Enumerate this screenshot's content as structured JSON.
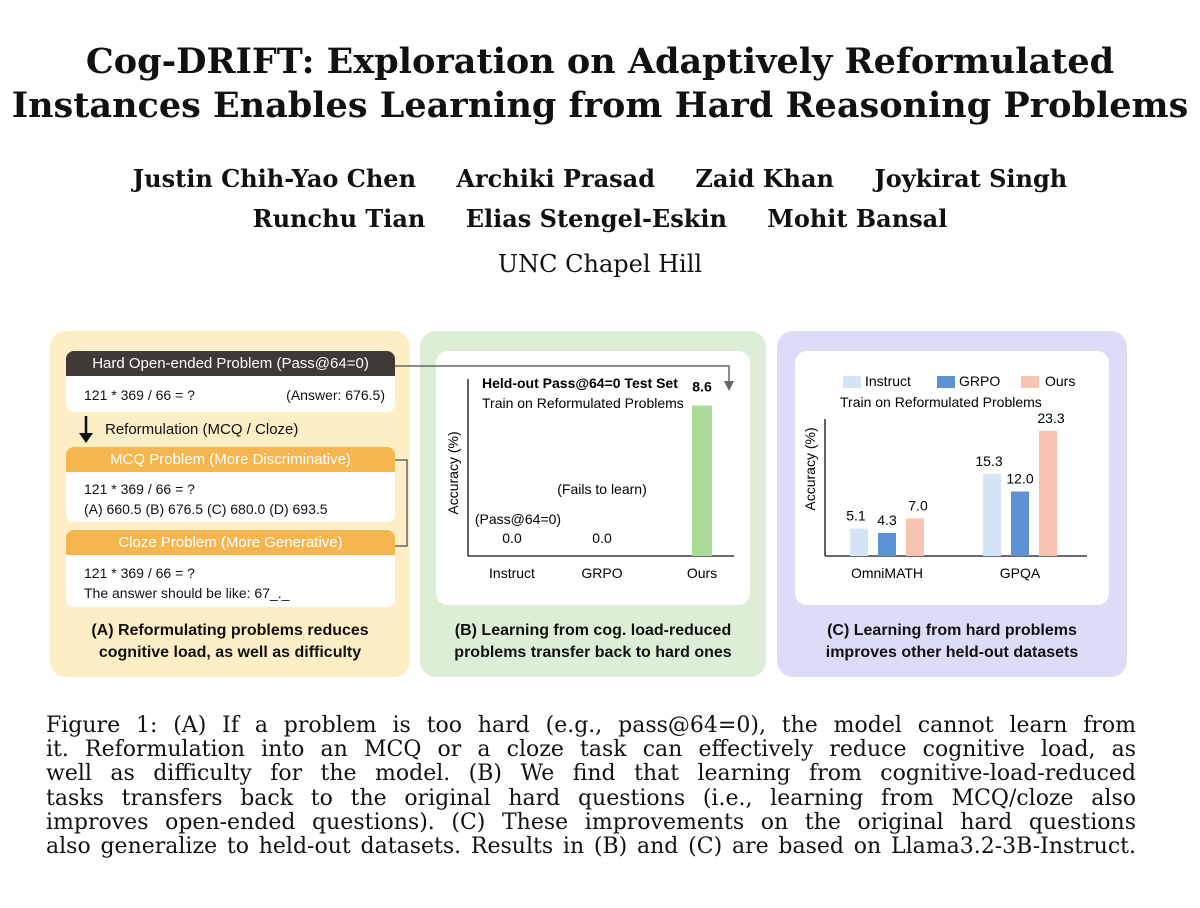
{
  "paper": {
    "title_lines": [
      "Cog-DRIFT: Exploration on Adaptively Reformulated",
      "Instances Enables Learning from Hard Reasoning Problems"
    ],
    "authors_row1": [
      "Justin Chih-Yao Chen",
      "Archiki Prasad",
      "Zaid Khan",
      "Joykirat Singh"
    ],
    "authors_row2": [
      "Runchu Tian",
      "Elias Stengel-Eskin",
      "Mohit Bansal"
    ],
    "affiliation": "UNC Chapel Hill"
  },
  "panel_a": {
    "hard_header": "Hard Open-ended Problem (Pass@64=0)",
    "hard_question": "121 * 369 / 66 = ?",
    "hard_answer": "(Answer: 676.5)",
    "reformulation_label": "Reformulation (MCQ / Cloze)",
    "mcq_header": "MCQ Problem (More Discriminative)",
    "mcq_question": "121 * 369 / 66 = ?",
    "mcq_options": "(A) 660.5 (B) 676.5 (C) 680.0 (D) 693.5",
    "cloze_header": "Cloze Problem (More Generative)",
    "cloze_question": "121 * 369 / 66 = ?",
    "cloze_hint": "The answer should be like: 67_._",
    "caption_lines": [
      "(A) Reformulating problems reduces",
      "cognitive load, as well as difficulty"
    ],
    "colors": {
      "hard": "#3f3a36",
      "mcq": "#f6b64f",
      "cloze": "#f6b64f"
    }
  },
  "chart_data": [
    {
      "type": "bar",
      "title": "Held-out Pass@64=0 Test Set",
      "subtitle": "Train on Reformulated Problems",
      "ylabel": "Accuracy (%)",
      "categories": [
        "Instruct",
        "GRPO",
        "Ours"
      ],
      "values": [
        0.0,
        0.0,
        8.6
      ],
      "value_labels": [
        "0.0",
        "0.0",
        "8.6"
      ],
      "annotations": [
        "(Pass@64=0)",
        "(Fails to learn)"
      ],
      "ylim": [
        0,
        10
      ],
      "colors": [
        "#a9dc98"
      ],
      "caption_lines": [
        "(B) Learning from cog. load-reduced",
        "problems transfer back to hard ones"
      ]
    },
    {
      "type": "bar",
      "subtitle": "Train on Reformulated Problems",
      "ylabel": "Accuracy (%)",
      "categories": [
        "OmniMATH",
        "GPQA"
      ],
      "series": [
        {
          "name": "Instruct",
          "values": [
            5.1,
            15.3
          ],
          "value_labels": [
            "5.1",
            "15.3"
          ]
        },
        {
          "name": "GRPO",
          "values": [
            4.3,
            12.0
          ],
          "value_labels": [
            "4.3",
            "12.0"
          ]
        },
        {
          "name": "Ours",
          "values": [
            7.0,
            23.3
          ],
          "value_labels": [
            "7.0",
            "23.3"
          ]
        }
      ],
      "ylim": [
        0,
        27
      ],
      "legend": "top",
      "colors": [
        "#d5e5f7",
        "#5b93d4",
        "#f6c4b0"
      ],
      "caption_lines": [
        "(C) Learning from hard problems",
        "improves other held-out datasets"
      ]
    }
  ],
  "figure_caption_lines": [
    "Figure 1: (A) If a problem is too hard (e.g., pass@64=0), the model cannot learn from",
    "it. Reformulation into an MCQ or a cloze task can effectively reduce cognitive load, as",
    "well as difficulty for the model. (B) We find that learning from cognitive-load-reduced",
    "tasks transfers back to the original hard questions (i.e., learning from MCQ/cloze also",
    "improves open-ended questions). (C) These improvements on the original hard questions",
    "also generalize to held-out datasets. Results in (B) and (C) are based on Llama3.2-3B-Instruct."
  ]
}
